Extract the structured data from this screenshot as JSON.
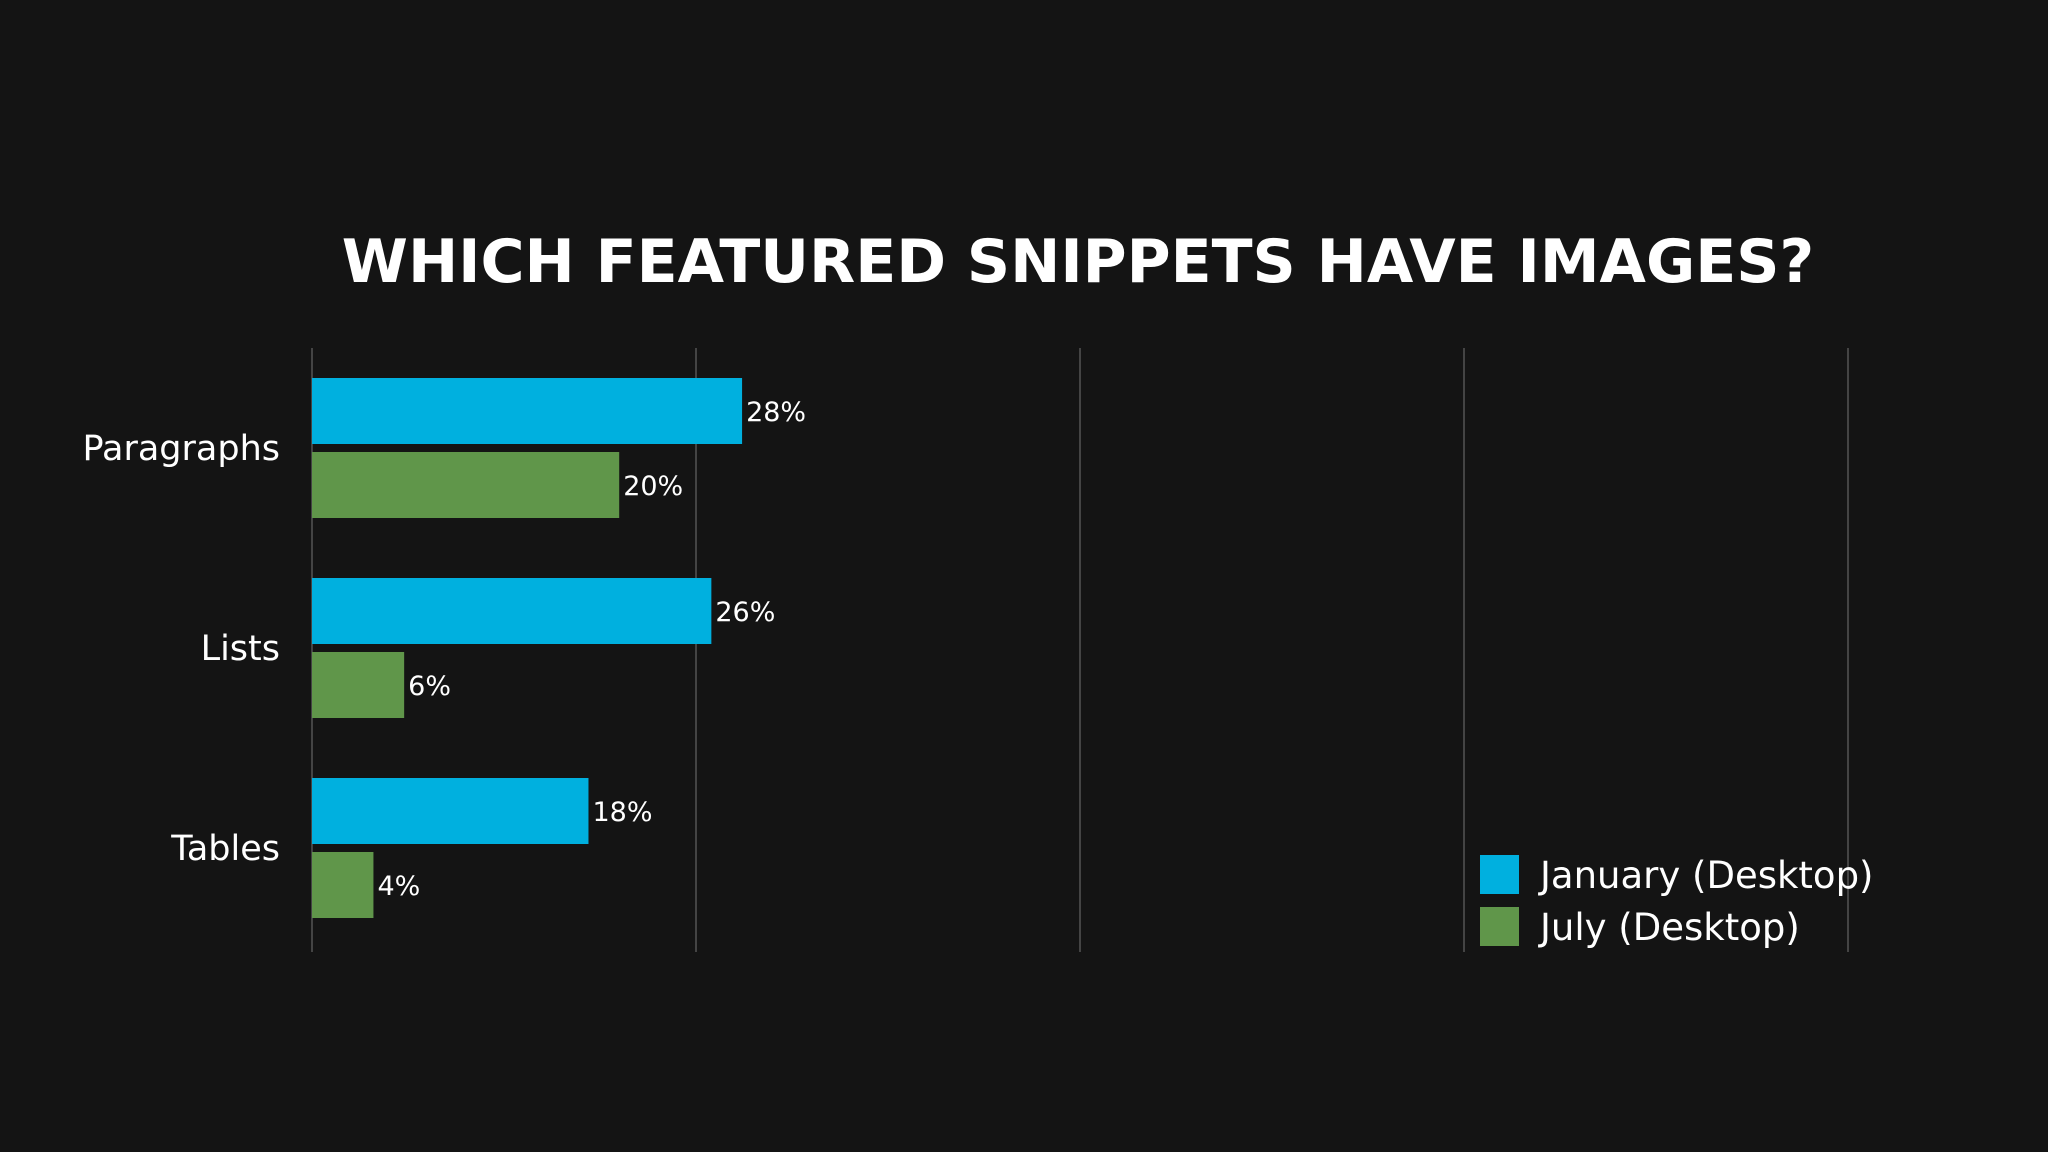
{
  "chart_data": {
    "type": "bar",
    "orientation": "horizontal",
    "title": "WHICH FEATURED SNIPPETS HAVE IMAGES?",
    "categories": [
      "Paragraphs",
      "Lists",
      "Tables"
    ],
    "series": [
      {
        "name": "January (Desktop)",
        "color": "#00b0df",
        "values": [
          28,
          26,
          18
        ],
        "labels": [
          "28%",
          "26%",
          "18%"
        ]
      },
      {
        "name": "July (Desktop)",
        "color": "#60964a",
        "values": [
          20,
          6,
          4
        ],
        "labels": [
          "20%",
          "6%",
          "4%"
        ]
      }
    ],
    "xlim": [
      0,
      100
    ],
    "x_gridlines": [
      0,
      25,
      50,
      75,
      100
    ],
    "grid": true,
    "x_tick_labels_shown": false,
    "legend_position": "bottom-right",
    "background": "#141414"
  }
}
